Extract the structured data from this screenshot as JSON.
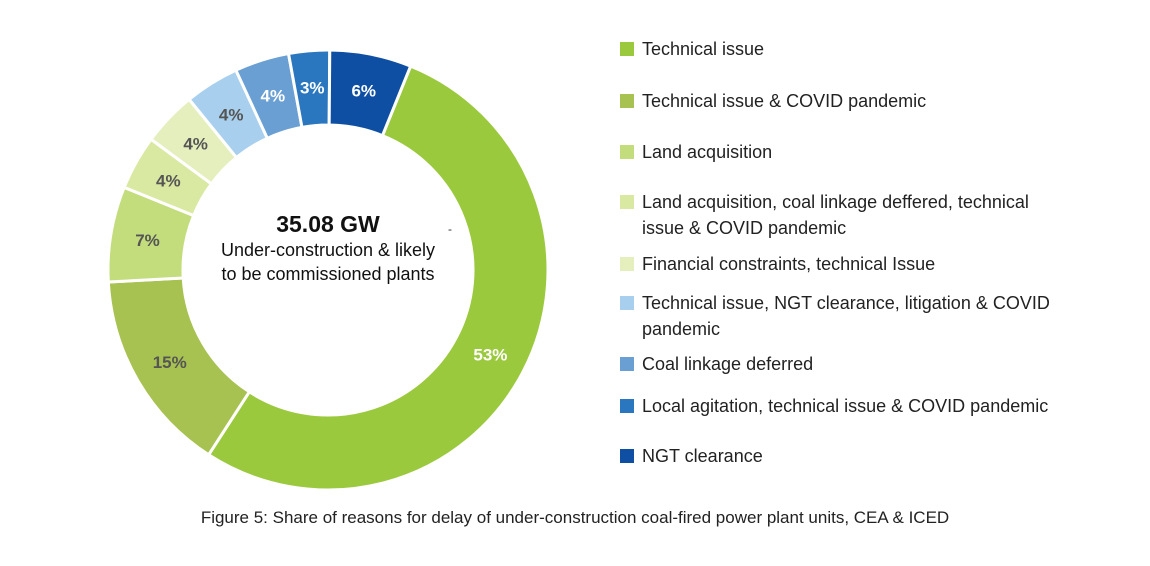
{
  "chart_data": {
    "type": "pie",
    "variant": "donut",
    "center_value": "35.08 GW",
    "center_label": "Under-construction & likely to be commissioned plants",
    "center_label_lines": [
      "Under-construction & likely",
      "to be commissioned plants"
    ],
    "slices": [
      {
        "label": "Technical issue",
        "value": 53,
        "display": "53%",
        "color": "#9bc93d",
        "label_color": "#ffffff"
      },
      {
        "label": "Technical issue & COVID pandemic",
        "value": 15,
        "display": "15%",
        "color": "#a7c250",
        "label_color": "#555555"
      },
      {
        "label": "Land acquisition",
        "value": 7,
        "display": "7%",
        "color": "#c4dd7c",
        "label_color": "#555555"
      },
      {
        "label": "Land acquisition, coal linkage deffered, technical issue & COVID pandemic",
        "value": 4,
        "display": "4%",
        "color": "#d9e9a2",
        "label_color": "#555555"
      },
      {
        "label": "Financial constraints, technical Issue",
        "value": 4,
        "display": "4%",
        "color": "#e5efbd",
        "label_color": "#555555"
      },
      {
        "label": "Technical issue, NGT clearance, litigation & COVID pandemic",
        "value": 4,
        "display": "4%",
        "color": "#a8d0ee",
        "label_color": "#555555"
      },
      {
        "label": "Coal linkage deferred",
        "value": 4,
        "display": "4%",
        "color": "#6a9fd3",
        "label_color": "#ffffff"
      },
      {
        "label": "Local agitation, technical issue & COVID pandemic",
        "value": 3,
        "display": "3%",
        "color": "#2a77c0",
        "label_color": "#ffffff"
      },
      {
        "label": "NGT clearance",
        "value": 6,
        "display": "6%",
        "color": "#0f4fa3",
        "label_color": "#ffffff"
      }
    ],
    "legend_position": "right",
    "caption": "Figure 5: Share of reasons for delay of under-construction coal-fired power plant units, CEA & ICED"
  },
  "legend": {
    "items": [
      {
        "lines": [
          "Technical issue"
        ]
      },
      {
        "lines": [
          "Technical issue & COVID pandemic"
        ]
      },
      {
        "lines": [
          "Land acquisition"
        ]
      },
      {
        "lines": [
          "Land acquisition, coal linkage deffered, technical",
          "issue & COVID pandemic"
        ]
      },
      {
        "lines": [
          "Financial constraints, technical Issue"
        ]
      },
      {
        "lines": [
          "Technical issue, NGT clearance, litigation & COVID",
          "pandemic"
        ]
      },
      {
        "lines": [
          "Coal linkage deferred"
        ]
      },
      {
        "lines": [
          "Local agitation, technical issue & COVID pandemic"
        ]
      },
      {
        "lines": [
          "NGT clearance"
        ]
      }
    ]
  },
  "stray_mark": "-"
}
